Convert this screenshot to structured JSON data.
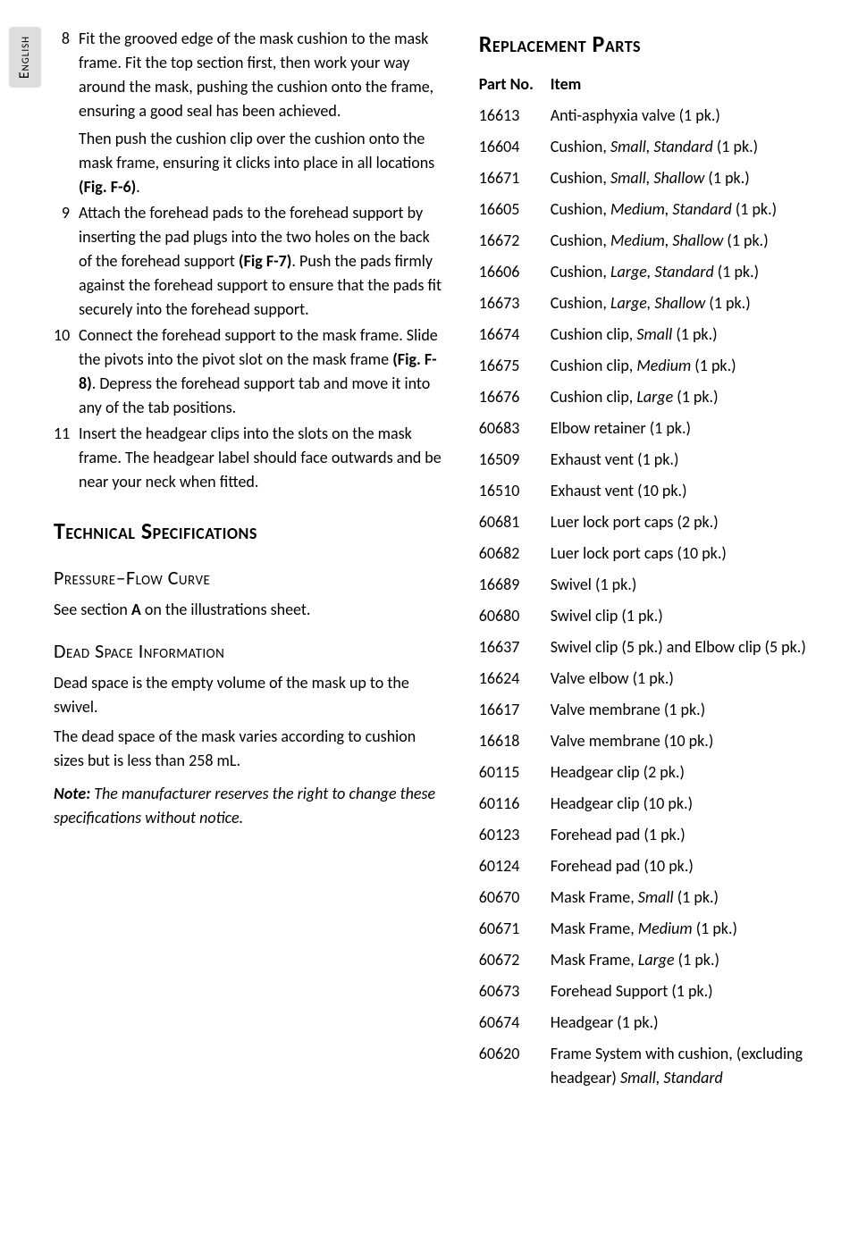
{
  "sideTab": "English",
  "steps": [
    {
      "n": "8",
      "paragraphs": [
        {
          "runs": [
            {
              "t": "Fit the grooved edge of the mask cushion to the mask frame. Fit the top section first, then work your way around the mask, pushing the cushion onto the frame, ensuring a good seal has been achieved."
            }
          ]
        },
        {
          "runs": [
            {
              "t": "Then push the cushion clip over the cushion onto the mask frame, ensuring it clicks into place in all locations "
            },
            {
              "t": "(Fig. F-6)",
              "cls": "fig"
            },
            {
              "t": "."
            }
          ]
        }
      ]
    },
    {
      "n": "9",
      "paragraphs": [
        {
          "runs": [
            {
              "t": "Attach the forehead pads to the forehead support by inserting the pad plugs into the two holes on the back of the forehead support "
            },
            {
              "t": "(Fig F-7)",
              "cls": "fig"
            },
            {
              "t": ". Push the pads firmly against the forehead support to ensure that the pads fit securely into the forehead support."
            }
          ]
        }
      ]
    },
    {
      "n": "10",
      "paragraphs": [
        {
          "runs": [
            {
              "t": "Connect the forehead support to the mask frame. Slide the pivots into the pivot slot on the mask frame "
            },
            {
              "t": "(Fig. F-8)",
              "cls": "fig"
            },
            {
              "t": ". Depress the forehead support tab and move it into any of the tab positions."
            }
          ]
        }
      ]
    },
    {
      "n": "11",
      "paragraphs": [
        {
          "runs": [
            {
              "t": "Insert the headgear clips into the slots on the mask frame. The headgear label should face outwards and be near your neck when fitted."
            }
          ]
        }
      ]
    }
  ],
  "techSpecTitle": "Technical Specifications",
  "pressureFlow": {
    "title": "Pressure–Flow Curve",
    "body": [
      {
        "runs": [
          {
            "t": "See section "
          },
          {
            "t": "A",
            "cls": "bold"
          },
          {
            "t": " on the illustrations sheet."
          }
        ]
      }
    ]
  },
  "deadSpace": {
    "title": "Dead Space Information",
    "body": [
      {
        "runs": [
          {
            "t": "Dead space is the empty volume of the mask up to the swivel."
          }
        ]
      },
      {
        "runs": [
          {
            "t": "The dead space of the mask varies according to cushion sizes but is less than 258 mL."
          }
        ]
      }
    ]
  },
  "note": {
    "label": "Note:",
    "text": "The manufacturer reserves the right to change these specifications without notice."
  },
  "replacement": {
    "title": "Replacement Parts",
    "headers": {
      "partNo": "Part No.",
      "item": "Item"
    },
    "rows": [
      {
        "pn": "16613",
        "runs": [
          {
            "t": "Anti-asphyxia valve (1 pk.)"
          }
        ]
      },
      {
        "pn": "16604",
        "runs": [
          {
            "t": "Cushion, "
          },
          {
            "t": "Small, Standard",
            "cls": "ital"
          },
          {
            "t": " (1 pk.)"
          }
        ]
      },
      {
        "pn": "16671",
        "runs": [
          {
            "t": "Cushion, "
          },
          {
            "t": "Small, Shallow",
            "cls": "ital"
          },
          {
            "t": " (1 pk.)"
          }
        ]
      },
      {
        "pn": "16605",
        "runs": [
          {
            "t": "Cushion, "
          },
          {
            "t": "Medium, Standard",
            "cls": "ital"
          },
          {
            "t": " (1 pk.)"
          }
        ]
      },
      {
        "pn": "16672",
        "runs": [
          {
            "t": "Cushion, "
          },
          {
            "t": "Medium, Shallow",
            "cls": "ital"
          },
          {
            "t": " (1 pk.)"
          }
        ]
      },
      {
        "pn": "16606",
        "runs": [
          {
            "t": "Cushion, "
          },
          {
            "t": "Large, Standard",
            "cls": "ital"
          },
          {
            "t": " (1 pk.)"
          }
        ]
      },
      {
        "pn": "16673",
        "runs": [
          {
            "t": "Cushion, "
          },
          {
            "t": "Large, Shallow",
            "cls": "ital"
          },
          {
            "t": " (1 pk.)"
          }
        ]
      },
      {
        "pn": "16674",
        "runs": [
          {
            "t": "Cushion clip, "
          },
          {
            "t": "Small",
            "cls": "ital"
          },
          {
            "t": " (1 pk.)"
          }
        ]
      },
      {
        "pn": "16675",
        "runs": [
          {
            "t": "Cushion clip, "
          },
          {
            "t": "Medium",
            "cls": "ital"
          },
          {
            "t": " (1 pk.)"
          }
        ]
      },
      {
        "pn": "16676",
        "runs": [
          {
            "t": "Cushion clip, "
          },
          {
            "t": "Large",
            "cls": "ital"
          },
          {
            "t": " (1 pk.)"
          }
        ]
      },
      {
        "pn": "60683",
        "runs": [
          {
            "t": "Elbow retainer (1 pk.)"
          }
        ]
      },
      {
        "pn": "16509",
        "runs": [
          {
            "t": "Exhaust vent (1 pk.)"
          }
        ]
      },
      {
        "pn": "16510",
        "runs": [
          {
            "t": "Exhaust vent (10 pk.)"
          }
        ]
      },
      {
        "pn": "60681",
        "runs": [
          {
            "t": "Luer lock port caps (2 pk.)"
          }
        ]
      },
      {
        "pn": "60682",
        "runs": [
          {
            "t": "Luer lock port caps (10 pk.)"
          }
        ]
      },
      {
        "pn": "16689",
        "runs": [
          {
            "t": "Swivel (1 pk.)"
          }
        ]
      },
      {
        "pn": "60680",
        "runs": [
          {
            "t": "Swivel clip (1 pk.)"
          }
        ]
      },
      {
        "pn": "16637",
        "runs": [
          {
            "t": "Swivel clip (5 pk.) and Elbow clip (5 pk.)"
          }
        ]
      },
      {
        "pn": "16624",
        "runs": [
          {
            "t": "Valve elbow (1 pk.)"
          }
        ]
      },
      {
        "pn": "16617",
        "runs": [
          {
            "t": "Valve membrane (1 pk.)"
          }
        ]
      },
      {
        "pn": "16618",
        "runs": [
          {
            "t": "Valve membrane (10 pk.)"
          }
        ]
      },
      {
        "pn": "60115",
        "runs": [
          {
            "t": "Headgear clip (2 pk.)"
          }
        ]
      },
      {
        "pn": "60116",
        "runs": [
          {
            "t": "Headgear clip (10 pk.)"
          }
        ]
      },
      {
        "pn": "60123",
        "runs": [
          {
            "t": "Forehead pad (1 pk.)"
          }
        ]
      },
      {
        "pn": "60124",
        "runs": [
          {
            "t": "Forehead pad (10 pk.)"
          }
        ]
      },
      {
        "pn": "60670",
        "runs": [
          {
            "t": "Mask Frame, "
          },
          {
            "t": "Small",
            "cls": "ital"
          },
          {
            "t": " (1 pk.)"
          }
        ]
      },
      {
        "pn": "60671",
        "runs": [
          {
            "t": "Mask Frame, "
          },
          {
            "t": "Medium",
            "cls": "ital"
          },
          {
            "t": " (1 pk.)"
          }
        ]
      },
      {
        "pn": "60672",
        "runs": [
          {
            "t": "Mask Frame, "
          },
          {
            "t": "Large",
            "cls": "ital"
          },
          {
            "t": " (1 pk.)"
          }
        ]
      },
      {
        "pn": "60673",
        "runs": [
          {
            "t": "Forehead Support (1 pk.)"
          }
        ]
      },
      {
        "pn": "60674",
        "runs": [
          {
            "t": "Headgear (1 pk.)"
          }
        ]
      },
      {
        "pn": "60620",
        "runs": [
          {
            "t": "Frame System with cushion, (excluding headgear) "
          },
          {
            "t": "Small, Standard",
            "cls": "ital"
          }
        ]
      }
    ]
  }
}
